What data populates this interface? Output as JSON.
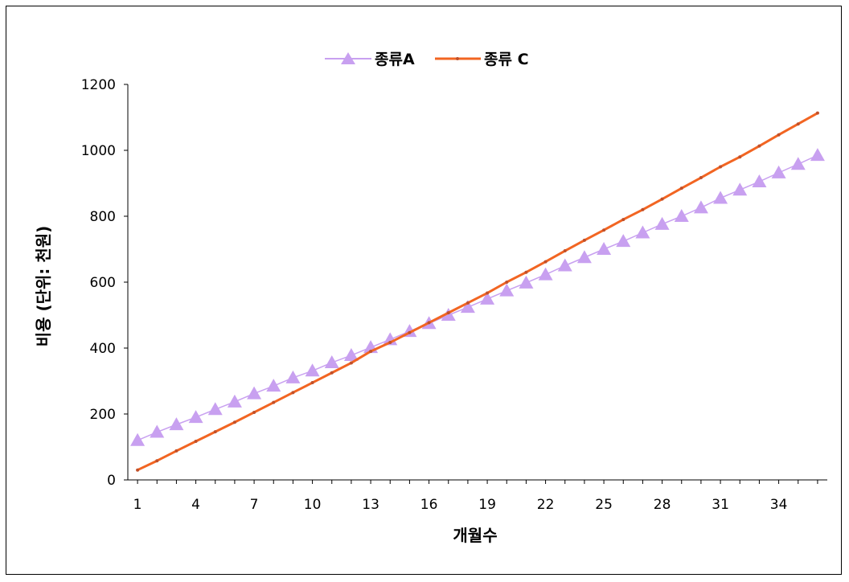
{
  "chart_data": {
    "type": "line",
    "title": "",
    "xlabel": "개월수",
    "ylabel": "비용 (단위: 천원)",
    "x": [
      1,
      2,
      3,
      4,
      5,
      6,
      7,
      8,
      9,
      10,
      11,
      12,
      13,
      14,
      15,
      16,
      17,
      18,
      19,
      20,
      21,
      22,
      23,
      24,
      25,
      26,
      27,
      28,
      29,
      30,
      31,
      32,
      33,
      34,
      35,
      36
    ],
    "x_tick_labels": [
      "1",
      "4",
      "7",
      "10",
      "13",
      "16",
      "19",
      "22",
      "25",
      "28",
      "31",
      "34"
    ],
    "x_tick_values": [
      1,
      4,
      7,
      10,
      13,
      16,
      19,
      22,
      25,
      28,
      31,
      34
    ],
    "ylim": [
      0,
      1200
    ],
    "y_ticks": [
      0,
      200,
      400,
      600,
      800,
      1000,
      1200
    ],
    "grid": false,
    "legend_position": "top",
    "series": [
      {
        "name": "종류A",
        "color": "#C8A0F0",
        "marker": "triangle",
        "values": [
          120,
          145,
          168,
          190,
          214,
          237,
          262,
          285,
          310,
          331,
          356,
          378,
          402,
          426,
          451,
          475,
          500,
          524,
          549,
          574,
          598,
          623,
          650,
          675,
          700,
          724,
          750,
          776,
          800,
          826,
          855,
          880,
          905,
          932,
          958,
          985
        ]
      },
      {
        "name": "종류 C",
        "color": "#F26522",
        "marker": "dot",
        "values": [
          30,
          58,
          88,
          117,
          146,
          175,
          205,
          235,
          265,
          295,
          325,
          355,
          390,
          417,
          447,
          477,
          507,
          537,
          567,
          600,
          630,
          662,
          695,
          727,
          758,
          790,
          820,
          852,
          885,
          917,
          950,
          980,
          1013,
          1047,
          1080,
          1113
        ]
      }
    ]
  }
}
